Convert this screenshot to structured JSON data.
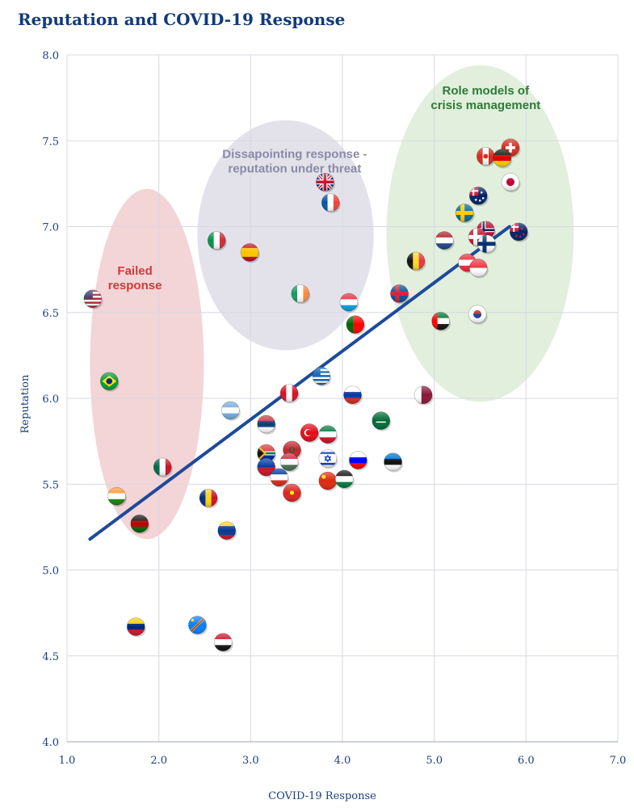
{
  "chart_data": {
    "type": "scatter",
    "title": "Reputation and COVID-19 Response",
    "xlabel": "COVID-19 Response",
    "ylabel": "Reputation",
    "xlim": [
      1.0,
      7.0
    ],
    "ylim": [
      4.0,
      8.0
    ],
    "x_ticks": [
      "1.0",
      "2.0",
      "3.0",
      "4.0",
      "5.0",
      "6.0",
      "7.0"
    ],
    "y_ticks": [
      "4.0",
      "4.5",
      "5.0",
      "5.5",
      "6.0",
      "6.5",
      "7.0",
      "7.5",
      "8.0"
    ],
    "grid": true,
    "trendline": {
      "x": [
        1.25,
        5.82
      ],
      "y": [
        5.18,
        7.0
      ]
    },
    "clusters": [
      {
        "label": [
          "Failed",
          "response"
        ],
        "color": "#d03a3a",
        "fill": "#f1cdd0",
        "cx": 1.87,
        "cy": 6.2,
        "rx": 0.62,
        "ry": 1.02
      },
      {
        "label": [
          "Dissapointing response -",
          "reputation under threat"
        ],
        "color": "#8a8aa6",
        "fill": "#dedde8",
        "cx": 3.38,
        "cy": 6.95,
        "rx": 0.96,
        "ry": 0.67
      },
      {
        "label": [
          "Role models of",
          "crisis management"
        ],
        "color": "#2e7a3a",
        "fill": "#dcecd6",
        "cx": 5.5,
        "cy": 6.96,
        "rx": 1.02,
        "ry": 0.98
      }
    ],
    "points": [
      {
        "country": "Switzerland",
        "x": 5.83,
        "y": 7.46
      },
      {
        "country": "Canada",
        "x": 5.56,
        "y": 7.41
      },
      {
        "country": "Germany",
        "x": 5.74,
        "y": 7.4
      },
      {
        "country": "Japan",
        "x": 5.83,
        "y": 7.26
      },
      {
        "country": "Australia",
        "x": 5.48,
        "y": 7.18
      },
      {
        "country": "Sweden",
        "x": 5.33,
        "y": 7.08
      },
      {
        "country": "Norway",
        "x": 5.56,
        "y": 6.98
      },
      {
        "country": "New Zealand",
        "x": 5.92,
        "y": 6.97
      },
      {
        "country": "Denmark",
        "x": 5.47,
        "y": 6.94
      },
      {
        "country": "Finland",
        "x": 5.57,
        "y": 6.9
      },
      {
        "country": "Netherlands",
        "x": 5.11,
        "y": 6.92
      },
      {
        "country": "Austria",
        "x": 5.36,
        "y": 6.79
      },
      {
        "country": "Singapore",
        "x": 5.48,
        "y": 6.76
      },
      {
        "country": "Belgium",
        "x": 4.8,
        "y": 6.8
      },
      {
        "country": "South Korea",
        "x": 5.47,
        "y": 6.49
      },
      {
        "country": "UAE",
        "x": 5.07,
        "y": 6.45
      },
      {
        "country": "United Kingdom",
        "x": 3.81,
        "y": 7.26
      },
      {
        "country": "France",
        "x": 3.87,
        "y": 7.14
      },
      {
        "country": "Italy",
        "x": 2.63,
        "y": 6.92
      },
      {
        "country": "Spain",
        "x": 2.99,
        "y": 6.85
      },
      {
        "country": "Ireland",
        "x": 3.54,
        "y": 6.61
      },
      {
        "country": "Luxembourg",
        "x": 4.07,
        "y": 6.56
      },
      {
        "country": "Iceland",
        "x": 4.62,
        "y": 6.61
      },
      {
        "country": "Portugal",
        "x": 4.14,
        "y": 6.43
      },
      {
        "country": "Greece",
        "x": 3.77,
        "y": 6.13
      },
      {
        "country": "Peru",
        "x": 3.42,
        "y": 6.03
      },
      {
        "country": "Russia",
        "x": 4.11,
        "y": 6.02
      },
      {
        "country": "Qatar",
        "x": 4.88,
        "y": 6.02
      },
      {
        "country": "Argentina",
        "x": 2.78,
        "y": 5.93
      },
      {
        "country": "Saudi Arabia",
        "x": 4.42,
        "y": 5.87
      },
      {
        "country": "Serbia",
        "x": 3.17,
        "y": 5.85
      },
      {
        "country": "Turkey",
        "x": 3.64,
        "y": 5.8
      },
      {
        "country": "Kuwait",
        "x": 3.84,
        "y": 5.79
      },
      {
        "country": "South Africa",
        "x": 3.17,
        "y": 5.68
      },
      {
        "country": "Morocco",
        "x": 3.45,
        "y": 5.7
      },
      {
        "country": "Hungary",
        "x": 3.42,
        "y": 5.63
      },
      {
        "country": "Israel",
        "x": 3.84,
        "y": 5.65
      },
      {
        "country": "Slovenia",
        "x": 4.17,
        "y": 5.64
      },
      {
        "country": "Estonia",
        "x": 4.55,
        "y": 5.63
      },
      {
        "country": "Philippines",
        "x": 3.17,
        "y": 5.6
      },
      {
        "country": "Chile",
        "x": 3.31,
        "y": 5.54
      },
      {
        "country": "China",
        "x": 3.84,
        "y": 5.52
      },
      {
        "country": "Jordan",
        "x": 4.02,
        "y": 5.53
      },
      {
        "country": "Vietnam",
        "x": 3.45,
        "y": 5.45
      },
      {
        "country": "Romania",
        "x": 2.54,
        "y": 5.42
      },
      {
        "country": "Colombia",
        "x": 2.74,
        "y": 5.23
      },
      {
        "country": "United States",
        "x": 1.28,
        "y": 6.58
      },
      {
        "country": "Brazil",
        "x": 1.46,
        "y": 6.1
      },
      {
        "country": "Mexico",
        "x": 2.04,
        "y": 5.6
      },
      {
        "country": "India",
        "x": 1.54,
        "y": 5.43
      },
      {
        "country": "Kenya",
        "x": 1.79,
        "y": 5.27
      },
      {
        "country": "Venezuela",
        "x": 1.75,
        "y": 4.67
      },
      {
        "country": "DR Congo",
        "x": 2.42,
        "y": 4.68
      },
      {
        "country": "Iraq",
        "x": 2.7,
        "y": 4.58
      }
    ]
  }
}
